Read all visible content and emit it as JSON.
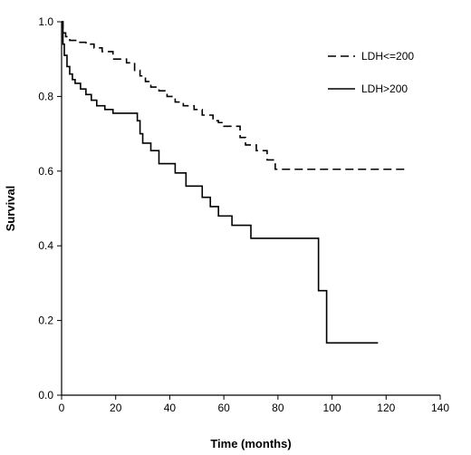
{
  "chart_data": {
    "type": "line",
    "title": "",
    "xlabel": "Time (months)",
    "ylabel": "Survival",
    "xlim": [
      0,
      140
    ],
    "ylim": [
      0,
      1.0
    ],
    "x_ticks": [
      "0",
      "20",
      "40",
      "60",
      "80",
      "100",
      "120",
      "140"
    ],
    "y_ticks": [
      "0.0",
      "0.2",
      "0.4",
      "0.6",
      "0.8",
      "1.0"
    ],
    "grid": false,
    "legend_position": "top-right",
    "step": true,
    "series": [
      {
        "name": "LDH<=200",
        "line_style": "dashed",
        "color": "#000000",
        "points": [
          [
            0,
            1.0
          ],
          [
            0.5,
            0.97
          ],
          [
            1.5,
            0.96
          ],
          [
            3,
            0.95
          ],
          [
            6,
            0.945
          ],
          [
            9,
            0.94
          ],
          [
            12,
            0.93
          ],
          [
            15,
            0.92
          ],
          [
            19,
            0.9
          ],
          [
            24,
            0.89
          ],
          [
            27,
            0.87
          ],
          [
            29,
            0.855
          ],
          [
            31,
            0.84
          ],
          [
            33,
            0.825
          ],
          [
            36,
            0.815
          ],
          [
            39,
            0.8
          ],
          [
            42,
            0.785
          ],
          [
            45,
            0.775
          ],
          [
            49,
            0.765
          ],
          [
            52,
            0.75
          ],
          [
            56,
            0.735
          ],
          [
            58,
            0.73
          ],
          [
            60,
            0.72
          ],
          [
            66,
            0.69
          ],
          [
            68,
            0.67
          ],
          [
            72,
            0.655
          ],
          [
            76,
            0.63
          ],
          [
            79,
            0.605
          ],
          [
            80,
            0.605
          ],
          [
            128,
            0.605
          ]
        ]
      },
      {
        "name": "LDH>200",
        "line_style": "solid",
        "color": "#000000",
        "points": [
          [
            0,
            1.0
          ],
          [
            0.5,
            0.94
          ],
          [
            1,
            0.91
          ],
          [
            2,
            0.88
          ],
          [
            3,
            0.86
          ],
          [
            4,
            0.845
          ],
          [
            5,
            0.835
          ],
          [
            7,
            0.82
          ],
          [
            9,
            0.805
          ],
          [
            11,
            0.79
          ],
          [
            13,
            0.775
          ],
          [
            16,
            0.765
          ],
          [
            19,
            0.755
          ],
          [
            28,
            0.735
          ],
          [
            29,
            0.7
          ],
          [
            30,
            0.675
          ],
          [
            33,
            0.655
          ],
          [
            36,
            0.62
          ],
          [
            42,
            0.595
          ],
          [
            46,
            0.56
          ],
          [
            52,
            0.53
          ],
          [
            55,
            0.505
          ],
          [
            58,
            0.48
          ],
          [
            63,
            0.455
          ],
          [
            70,
            0.42
          ],
          [
            95,
            0.28
          ],
          [
            98,
            0.14
          ],
          [
            117,
            0.14
          ]
        ]
      }
    ]
  }
}
